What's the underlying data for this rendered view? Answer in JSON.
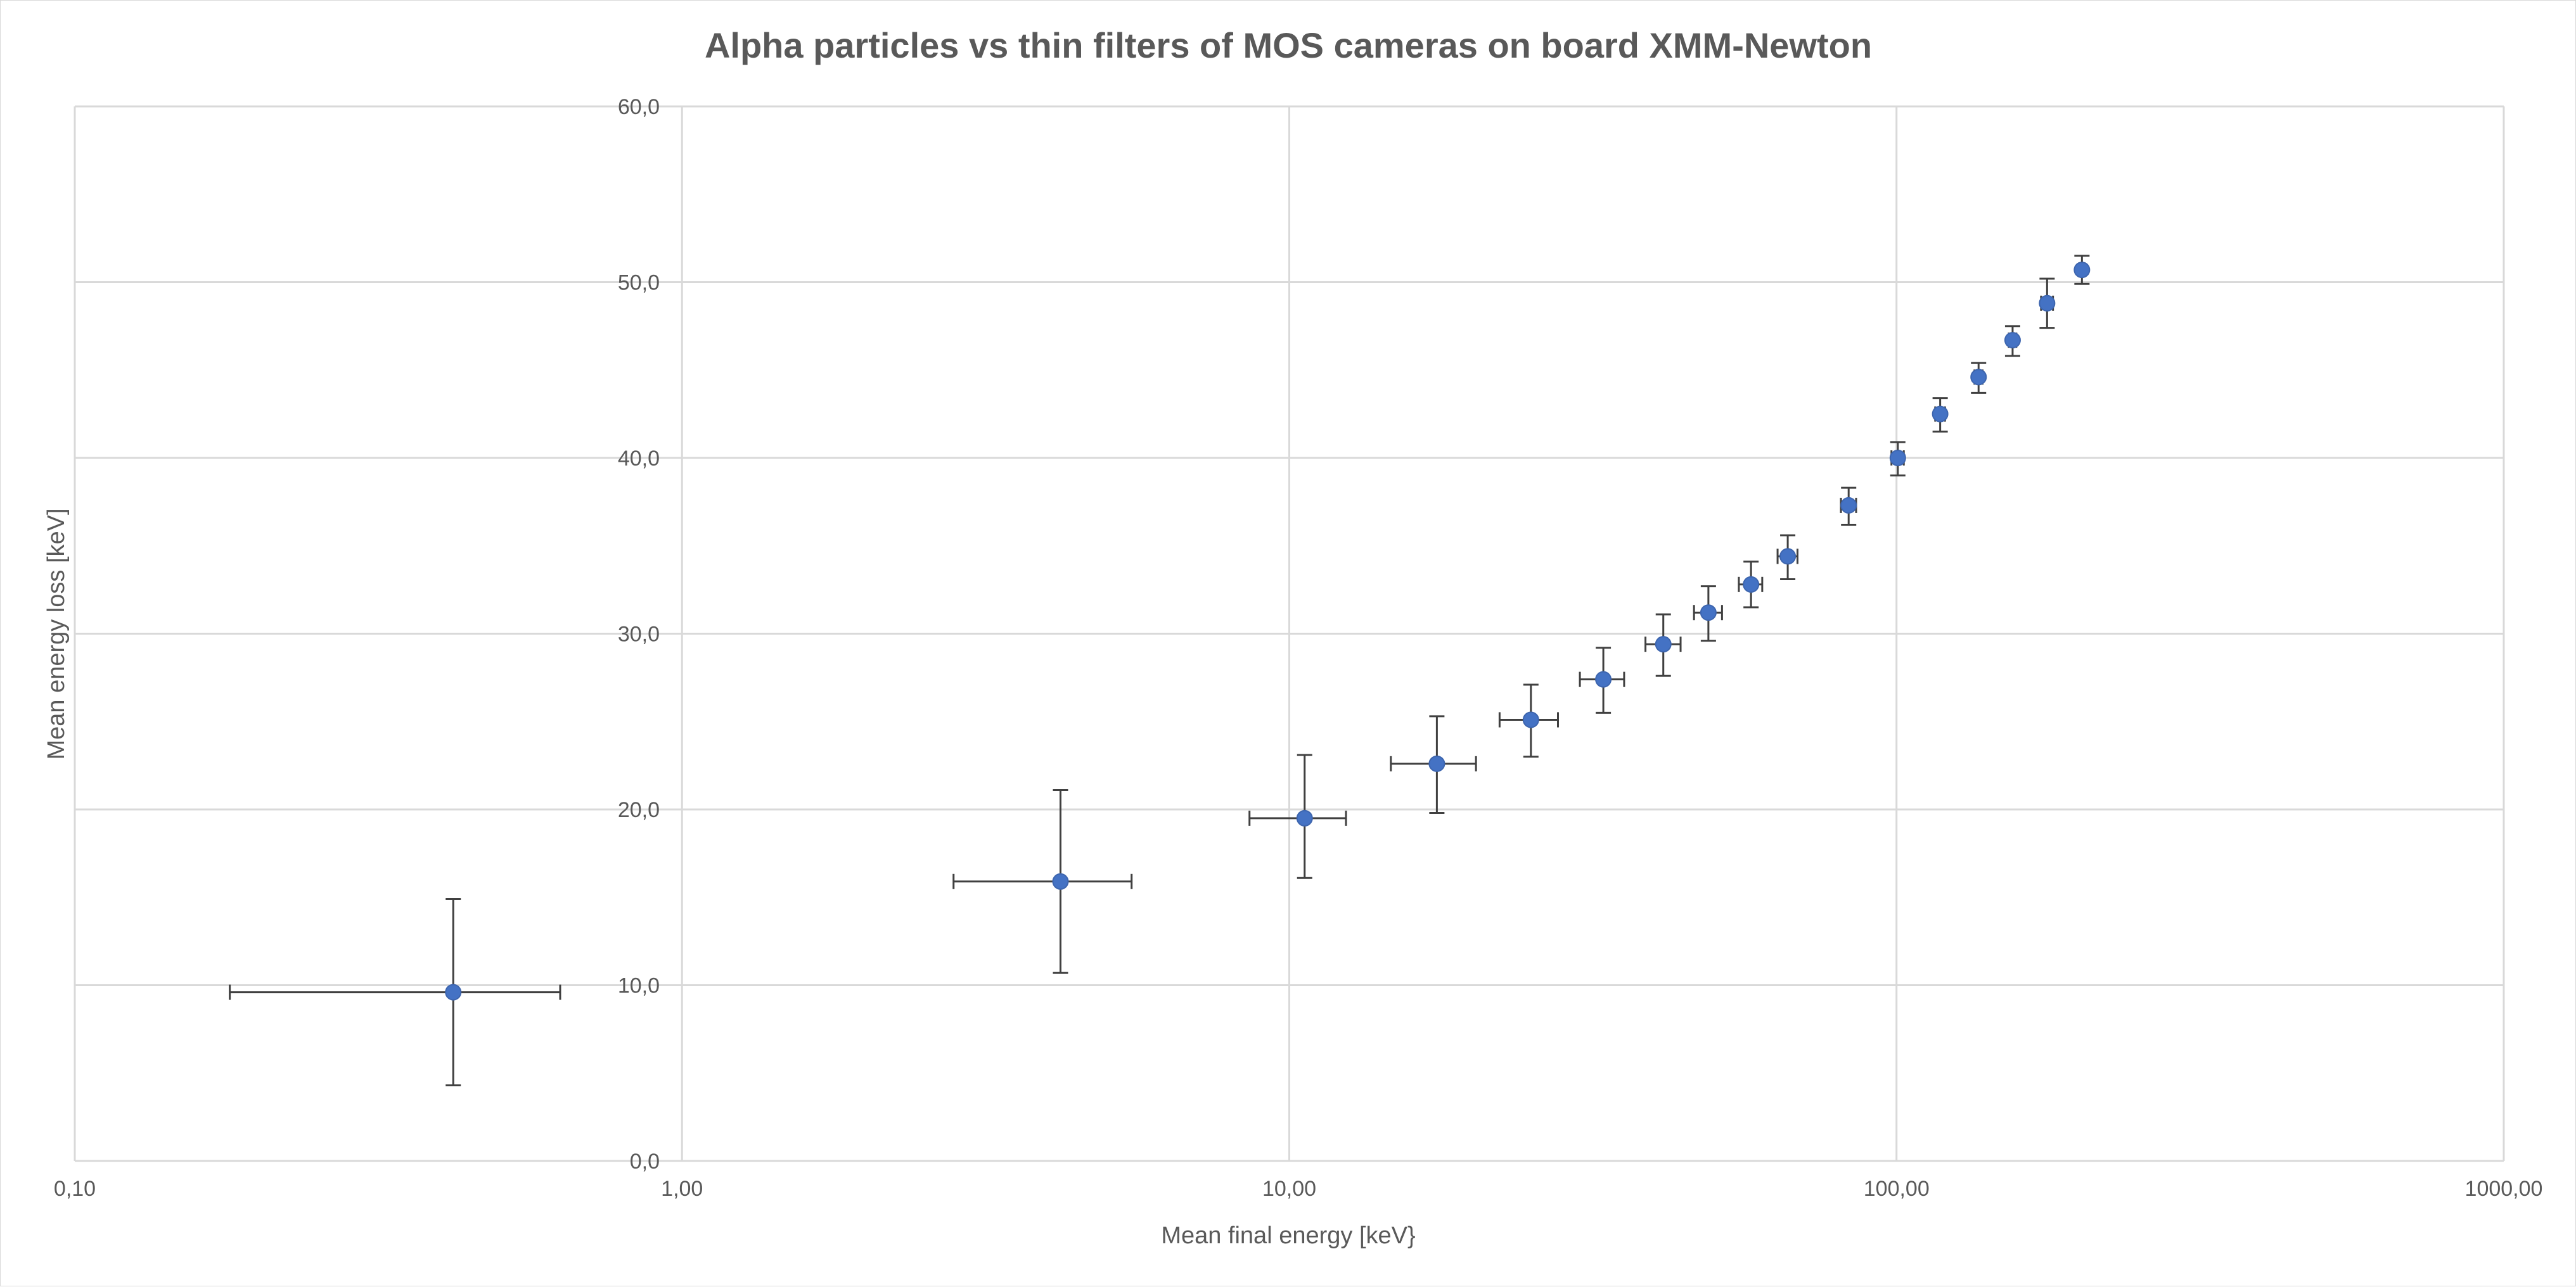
{
  "chart_data": {
    "type": "scatter",
    "title": "Alpha particles vs thin filters of MOS cameras on board XMM-Newton",
    "xlabel": "Mean final energy [keV}",
    "ylabel": "Mean energy loss [keV]",
    "x_scale": "log",
    "xlim": [
      0.1,
      1000
    ],
    "ylim": [
      0,
      60
    ],
    "x_tick_labels": [
      "0,10",
      "1,00",
      "10,00",
      "100,00",
      "1000,00"
    ],
    "y_tick_labels": [
      "0,0",
      "10,0",
      "20,0",
      "30,0",
      "40,0",
      "50,0",
      "60,0"
    ],
    "grid": true,
    "legend": "none",
    "marker_color": "#4472c4",
    "error_bar_color": "#404040",
    "series": [
      {
        "points": [
          {
            "x": 0.42,
            "y": 9.6,
            "x_lo": 0.18,
            "x_hi": 0.63,
            "y_lo": 4.3,
            "y_hi": 14.9
          },
          {
            "x": 4.2,
            "y": 15.9,
            "x_lo": 2.8,
            "x_hi": 5.5,
            "y_lo": 10.7,
            "y_hi": 21.1
          },
          {
            "x": 10.6,
            "y": 19.5,
            "x_lo": 8.6,
            "x_hi": 12.4,
            "y_lo": 16.1,
            "y_hi": 23.1
          },
          {
            "x": 17.5,
            "y": 22.6,
            "x_lo": 14.7,
            "x_hi": 20.3,
            "y_lo": 19.8,
            "y_hi": 25.3
          },
          {
            "x": 25.0,
            "y": 25.1,
            "x_lo": 22.2,
            "x_hi": 27.7,
            "y_lo": 23.0,
            "y_hi": 27.1
          },
          {
            "x": 32.9,
            "y": 27.4,
            "x_lo": 30.1,
            "x_hi": 35.6,
            "y_lo": 25.5,
            "y_hi": 29.2
          },
          {
            "x": 41.3,
            "y": 29.4,
            "x_lo": 38.6,
            "x_hi": 44.1,
            "y_lo": 27.6,
            "y_hi": 31.1
          },
          {
            "x": 49.0,
            "y": 31.2,
            "x_lo": 46.4,
            "x_hi": 51.6,
            "y_lo": 29.6,
            "y_hi": 32.7
          },
          {
            "x": 57.6,
            "y": 32.8,
            "x_lo": 55.0,
            "x_hi": 60.1,
            "y_lo": 31.5,
            "y_hi": 34.1
          },
          {
            "x": 66.2,
            "y": 34.4,
            "x_lo": 63.7,
            "x_hi": 68.7,
            "y_lo": 33.1,
            "y_hi": 35.6
          },
          {
            "x": 83.4,
            "y": 37.3,
            "x_lo": 81.0,
            "x_hi": 85.8,
            "y_lo": 36.2,
            "y_hi": 38.3
          },
          {
            "x": 100.5,
            "y": 40.0,
            "x_lo": 98.1,
            "x_hi": 102.8,
            "y_lo": 39.0,
            "y_hi": 40.9
          },
          {
            "x": 118.0,
            "y": 42.5,
            "x_lo": 115.8,
            "x_hi": 120.2,
            "y_lo": 41.5,
            "y_hi": 43.4
          },
          {
            "x": 136.5,
            "y": 44.6,
            "x_lo": 134.4,
            "x_hi": 138.6,
            "y_lo": 43.7,
            "y_hi": 45.4
          },
          {
            "x": 155.3,
            "y": 46.7,
            "x_lo": 153.1,
            "x_hi": 157.5,
            "y_lo": 45.8,
            "y_hi": 47.5
          },
          {
            "x": 177.0,
            "y": 48.8,
            "x_lo": 173.0,
            "x_hi": 181.0,
            "y_lo": 47.4,
            "y_hi": 50.2
          },
          {
            "x": 202.0,
            "y": 50.7,
            "x_lo": 200.0,
            "x_hi": 204.0,
            "y_lo": 49.9,
            "y_hi": 51.5
          }
        ]
      }
    ]
  }
}
